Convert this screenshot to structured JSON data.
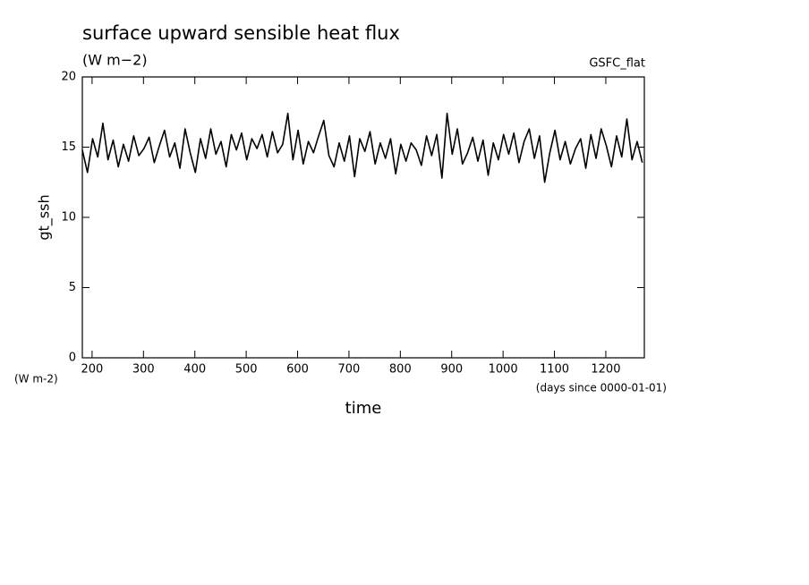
{
  "chart_data": {
    "type": "line",
    "title": "surface upward sensible heat flux",
    "subtitle": "(W m−2)",
    "source_label": "GSFC_flat",
    "ylabel": "gt_ssh",
    "y_units": "(W m-2)",
    "xlabel": "time",
    "x_units": "(days since 0000-01-01)",
    "xlim": [
      181,
      1275
    ],
    "ylim": [
      0,
      20
    ],
    "xticks": [
      200,
      300,
      400,
      500,
      600,
      700,
      800,
      900,
      1000,
      1100,
      1200
    ],
    "yticks": [
      0,
      5,
      10,
      15,
      20
    ],
    "x": [
      181,
      191,
      201,
      211,
      221,
      231,
      241,
      251,
      261,
      271,
      281,
      291,
      301,
      311,
      321,
      331,
      341,
      351,
      361,
      371,
      381,
      391,
      401,
      411,
      421,
      431,
      441,
      451,
      461,
      471,
      481,
      491,
      501,
      511,
      521,
      531,
      541,
      551,
      561,
      571,
      581,
      591,
      601,
      611,
      621,
      631,
      641,
      651,
      661,
      671,
      681,
      691,
      701,
      711,
      721,
      731,
      741,
      751,
      761,
      771,
      781,
      791,
      801,
      811,
      821,
      831,
      841,
      851,
      861,
      871,
      881,
      891,
      901,
      911,
      921,
      931,
      941,
      951,
      961,
      971,
      981,
      991,
      1001,
      1011,
      1021,
      1031,
      1041,
      1051,
      1061,
      1071,
      1081,
      1091,
      1101,
      1111,
      1121,
      1131,
      1141,
      1151,
      1161,
      1171,
      1181,
      1191,
      1201,
      1211,
      1221,
      1231,
      1241,
      1251,
      1261,
      1271
    ],
    "series": [
      {
        "color": "#000000",
        "values": [
          14.8,
          13.2,
          15.6,
          14.3,
          16.7,
          14.1,
          15.5,
          13.6,
          15.2,
          14.0,
          15.8,
          14.4,
          14.9,
          15.7,
          13.9,
          15.1,
          16.2,
          14.3,
          15.3,
          13.5,
          16.3,
          14.6,
          13.2,
          15.6,
          14.2,
          16.3,
          14.5,
          15.4,
          13.6,
          15.9,
          14.8,
          16.0,
          14.1,
          15.6,
          14.9,
          15.9,
          14.3,
          16.1,
          14.6,
          15.2,
          17.4,
          14.1,
          16.2,
          13.8,
          15.4,
          14.6,
          15.8,
          16.9,
          14.4,
          13.6,
          15.3,
          14.0,
          15.8,
          12.9,
          15.6,
          14.7,
          16.1,
          13.8,
          15.3,
          14.2,
          15.6,
          13.1,
          15.2,
          14.0,
          15.3,
          14.8,
          13.7,
          15.8,
          14.4,
          15.9,
          12.8,
          17.4,
          14.5,
          16.3,
          13.8,
          14.6,
          15.7,
          14.0,
          15.5,
          13.0,
          15.3,
          14.1,
          15.9,
          14.5,
          16.0,
          13.9,
          15.4,
          16.3,
          14.2,
          15.8,
          12.5,
          14.6,
          16.2,
          14.1,
          15.4,
          13.8,
          14.9,
          15.6,
          13.5,
          15.9,
          14.2,
          16.3,
          15.1,
          13.6,
          15.8,
          14.3,
          17.0,
          14.1,
          15.4,
          13.9
        ]
      }
    ]
  }
}
